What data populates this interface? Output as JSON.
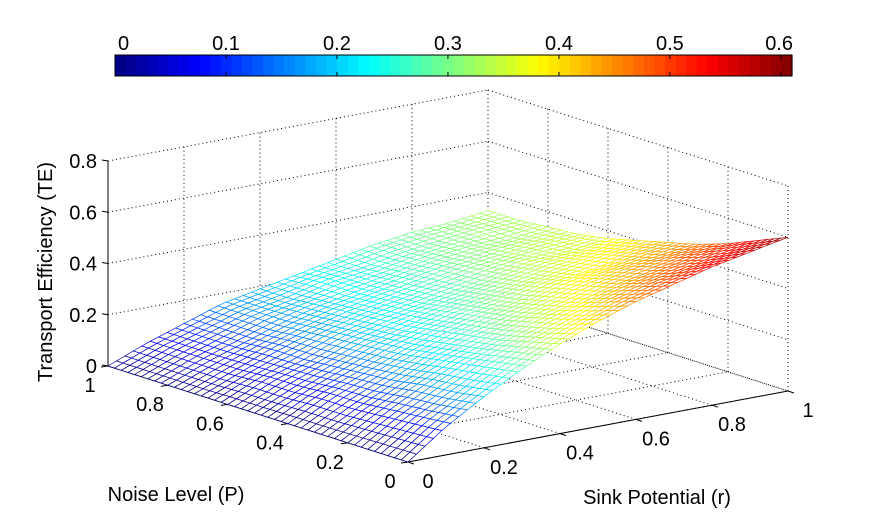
{
  "chart_data": {
    "type": "surface-mesh",
    "title": "",
    "xlabel": "Sink Potential (r)",
    "ylabel": "Noise Level (P)",
    "zlabel": "Transport Efficiency (TE)",
    "xlim": [
      0,
      1
    ],
    "ylim": [
      0,
      1
    ],
    "zlim": [
      0,
      0.8
    ],
    "x_ticks": [
      "0",
      "0.2",
      "0.4",
      "0.6",
      "0.8",
      "1"
    ],
    "y_ticks": [
      "0",
      "0.2",
      "0.4",
      "0.6",
      "0.8",
      "1"
    ],
    "z_ticks": [
      "0",
      "0.2",
      "0.4",
      "0.6",
      "0.8"
    ],
    "grid": true,
    "colormap": "jet",
    "colorbar": {
      "placement": "top",
      "clim": [
        0,
        0.61
      ],
      "ticks": [
        "0",
        "0.1",
        "0.2",
        "0.3",
        "0.4",
        "0.5",
        "0.6"
      ]
    },
    "r_values": [
      0,
      0.1,
      0.2,
      0.3,
      0.4,
      0.5,
      0.6,
      0.7,
      0.8,
      0.9,
      1
    ],
    "P_values": [
      0,
      0.1,
      0.2,
      0.3,
      0.4,
      0.5,
      0.6,
      0.7,
      0.8,
      0.9,
      1
    ],
    "z_matrix_rows_by_P": [
      [
        0,
        0.11,
        0.2,
        0.28,
        0.35,
        0.41,
        0.46,
        0.5,
        0.54,
        0.57,
        0.6
      ],
      [
        0,
        0.1,
        0.18,
        0.26,
        0.32,
        0.37,
        0.42,
        0.46,
        0.49,
        0.52,
        0.55
      ],
      [
        0,
        0.09,
        0.17,
        0.24,
        0.29,
        0.34,
        0.38,
        0.42,
        0.45,
        0.48,
        0.5
      ],
      [
        0,
        0.08,
        0.15,
        0.22,
        0.27,
        0.31,
        0.35,
        0.39,
        0.42,
        0.44,
        0.46
      ],
      [
        0,
        0.08,
        0.14,
        0.2,
        0.25,
        0.29,
        0.32,
        0.36,
        0.38,
        0.41,
        0.43
      ],
      [
        0,
        0.07,
        0.13,
        0.19,
        0.23,
        0.27,
        0.3,
        0.33,
        0.36,
        0.38,
        0.4
      ],
      [
        0,
        0.07,
        0.12,
        0.18,
        0.22,
        0.25,
        0.28,
        0.31,
        0.34,
        0.35,
        0.37
      ],
      [
        0,
        0.06,
        0.12,
        0.17,
        0.21,
        0.24,
        0.27,
        0.3,
        0.32,
        0.34,
        0.35
      ],
      [
        0,
        0.06,
        0.11,
        0.16,
        0.2,
        0.23,
        0.26,
        0.29,
        0.31,
        0.32,
        0.34
      ],
      [
        0,
        0.06,
        0.11,
        0.16,
        0.19,
        0.23,
        0.25,
        0.28,
        0.3,
        0.32,
        0.33
      ],
      [
        0,
        0.06,
        0.11,
        0.16,
        0.19,
        0.22,
        0.25,
        0.28,
        0.3,
        0.31,
        0.33
      ]
    ]
  }
}
